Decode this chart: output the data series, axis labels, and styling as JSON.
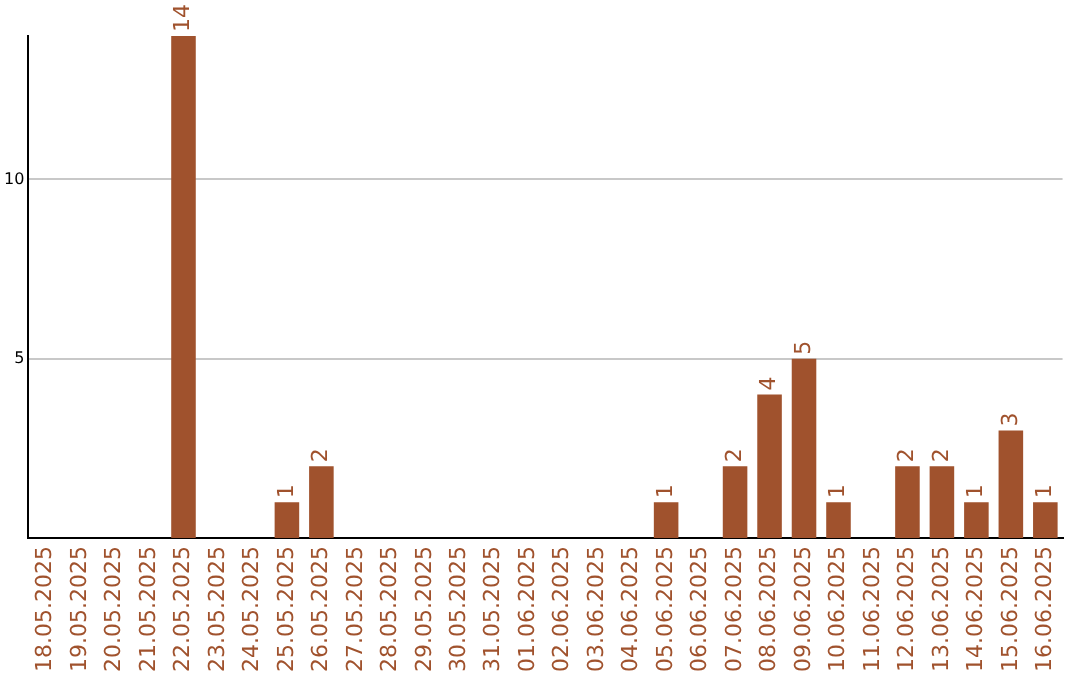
{
  "chart_data": {
    "type": "bar",
    "categories": [
      "18.05.2025",
      "19.05.2025",
      "20.05.2025",
      "21.05.2025",
      "22.05.2025",
      "23.05.2025",
      "24.05.2025",
      "25.05.2025",
      "26.05.2025",
      "27.05.2025",
      "28.05.2025",
      "29.05.2025",
      "30.05.2025",
      "31.05.2025",
      "01.06.2025",
      "02.06.2025",
      "03.06.2025",
      "04.06.2025",
      "05.06.2025",
      "06.06.2025",
      "07.06.2025",
      "08.06.2025",
      "09.06.2025",
      "10.06.2025",
      "11.06.2025",
      "12.06.2025",
      "13.06.2025",
      "14.06.2025",
      "15.06.2025",
      "16.06.2025"
    ],
    "values": [
      null,
      null,
      null,
      null,
      14,
      null,
      null,
      1,
      2,
      null,
      null,
      null,
      null,
      null,
      null,
      null,
      null,
      null,
      1,
      null,
      2,
      4,
      5,
      1,
      null,
      2,
      2,
      1,
      3,
      1
    ],
    "color": "#a0522d",
    "ylim": [
      0,
      14
    ],
    "yticks": [
      5,
      10
    ],
    "grid": "y",
    "data_labels": true,
    "legend": false
  }
}
